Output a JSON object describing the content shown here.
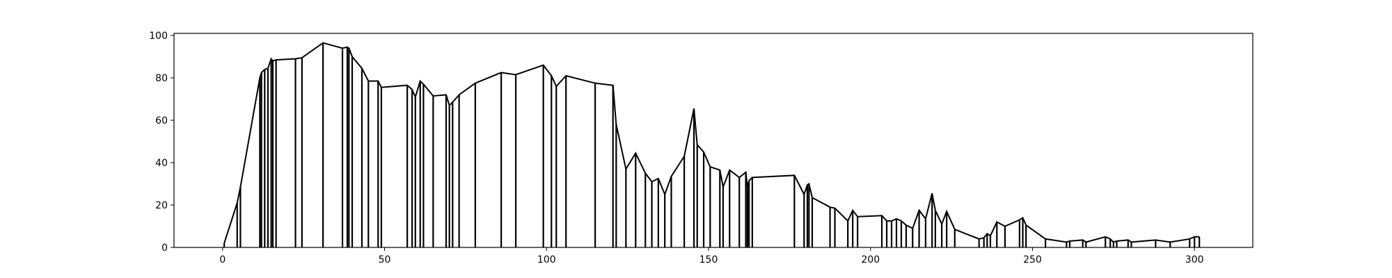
{
  "chart_data": {
    "type": "line",
    "title": "",
    "xlabel": "",
    "ylabel": "",
    "xlim": [
      -15,
      318
    ],
    "ylim": [
      0,
      101
    ],
    "x_ticks": [
      0,
      50,
      100,
      150,
      200,
      250,
      300
    ],
    "y_ticks": [
      0,
      20,
      40,
      60,
      80,
      100
    ],
    "x_tick_labels": [
      "0",
      "50",
      "100",
      "150",
      "200",
      "250",
      "300"
    ],
    "y_tick_labels": [
      "0",
      "20",
      "40",
      "60",
      "80",
      "100"
    ],
    "grid": false,
    "legend": "none",
    "colors": {
      "line": "#000000",
      "background": "#ffffff",
      "axes": "#000000"
    },
    "style": "vertical line drawn from 0 to each point, points joined by a polyline",
    "series": [
      {
        "x": [
          0.5,
          4.5,
          5.5,
          11.5,
          12,
          13,
          14,
          15,
          15.5,
          16.5,
          22.5,
          24.5,
          31,
          37,
          38.5,
          39,
          40,
          43,
          45,
          48,
          49,
          57,
          58.5,
          59.5,
          61,
          62,
          65,
          69,
          70,
          71,
          73,
          78,
          86,
          90.5,
          99,
          101.5,
          103,
          106,
          115,
          120.5,
          121.5,
          124.5,
          127.5,
          130.5,
          132.5,
          134.5,
          136.5,
          138.5,
          142.5,
          145.5,
          146.5,
          148.5,
          150.5,
          153.5,
          154.5,
          156.5,
          159.5,
          161.5,
          162,
          162.5,
          163.5,
          176.5,
          179.5,
          180.5,
          181,
          182,
          187.5,
          189,
          193,
          194.5,
          196,
          203.5,
          205,
          206.5,
          208,
          209.5,
          211,
          213,
          215,
          217,
          219,
          220,
          222,
          223.5,
          226,
          233.5,
          235,
          236,
          237,
          239,
          241.5,
          246,
          247,
          248,
          254,
          260.5,
          261.5,
          265.5,
          266.5,
          272.5,
          274,
          275,
          276,
          279.5,
          280.5,
          288,
          292.5,
          298.5,
          300,
          301.5
        ]
      },
      {
        "y": [
          2,
          21,
          28.5,
          80,
          82.5,
          84,
          84.5,
          89,
          88,
          88.5,
          89,
          89.5,
          96.5,
          94,
          94.5,
          94,
          90,
          84.5,
          78.5,
          78.5,
          75.5,
          76.5,
          74.5,
          71,
          78.5,
          77,
          71.5,
          72,
          67,
          68.5,
          72,
          77.5,
          82.5,
          81.5,
          86,
          81,
          76,
          81,
          77.5,
          76.5,
          58,
          37,
          44.5,
          35,
          31,
          32.5,
          25,
          33.5,
          43,
          65.5,
          48.5,
          45,
          38,
          36.5,
          28.5,
          36.5,
          33,
          35.5,
          28.5,
          31.5,
          33,
          34,
          25,
          29.5,
          30,
          23.5,
          19,
          18.5,
          12.5,
          17.5,
          14.5,
          15,
          12.5,
          12.5,
          13.5,
          12.5,
          10.5,
          9,
          17.5,
          13.5,
          25.5,
          17.5,
          11,
          17,
          8.5,
          4,
          4.5,
          6.5,
          5.5,
          12,
          10,
          13,
          14,
          10.5,
          4,
          2.5,
          3,
          3.5,
          2.5,
          5,
          4,
          2.5,
          3,
          3.5,
          2.5,
          3.5,
          2.5,
          4,
          5,
          5
        ]
      }
    ]
  }
}
